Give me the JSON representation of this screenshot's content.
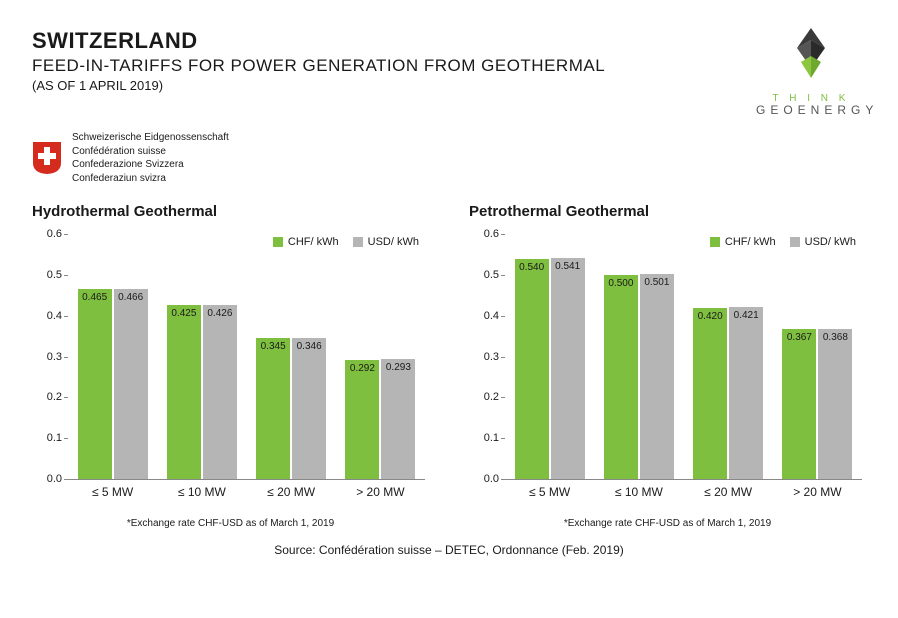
{
  "header": {
    "title": "SWITZERLAND",
    "subtitle": "FEED-IN-TARIFFS FOR POWER GENERATION FROM GEOTHERMAL",
    "date_line": "(AS OF 1 APRIL 2019)"
  },
  "logo": {
    "line1": "T H I N K",
    "line2": "GEOENERGY",
    "diamond_dark": "#3a3a3a",
    "diamond_green": "#8cc63f"
  },
  "swiss": {
    "shield_bg": "#d52b1e",
    "shield_cross": "#ffffff",
    "lines": [
      "Schweizerische Eidgenossenschaft",
      "Confédération suisse",
      "Confederazione Svizzera",
      "Confederaziun svizra"
    ]
  },
  "chart_common": {
    "ymax": 0.6,
    "ytick_step": 0.1,
    "yticks": [
      "0.0",
      "0.1",
      "0.2",
      "0.3",
      "0.4",
      "0.5",
      "0.6"
    ],
    "categories": [
      "≤  5 MW",
      "≤ 10 MW",
      "≤ 20 MW",
      "> 20 MW"
    ],
    "series_colors": {
      "chf": "#7fbf3f",
      "usd": "#b5b5b5"
    },
    "legend": {
      "chf": "CHF/ kWh",
      "usd": "USD/ kWh"
    },
    "label_color": "#1a1a1a",
    "axis_color": "#888888",
    "label_fontsize": 10,
    "tick_fontsize": 11
  },
  "charts": [
    {
      "title": "Hydrothermal Geothermal",
      "chf": [
        0.465,
        0.425,
        0.345,
        0.292
      ],
      "usd": [
        0.466,
        0.426,
        0.346,
        0.293
      ],
      "note": "*Exchange rate CHF-USD as of March 1, 2019"
    },
    {
      "title": "Petrothermal Geothermal",
      "chf": [
        0.54,
        0.5,
        0.42,
        0.367
      ],
      "usd": [
        0.541,
        0.501,
        0.421,
        0.368
      ],
      "note": "*Exchange rate CHF-USD as of March 1, 2019"
    }
  ],
  "source": "Source: Confédération suisse – DETEC, Ordonnance (Feb. 2019)"
}
